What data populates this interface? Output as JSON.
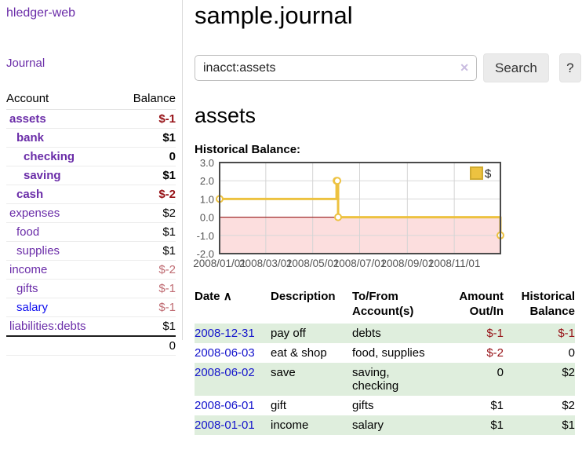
{
  "sidebar": {
    "app_title": "hledger-web",
    "journal_link": "Journal",
    "table": {
      "headers": {
        "account": "Account",
        "balance": "Balance"
      },
      "accounts": [
        {
          "name": "assets",
          "balance": "$-1",
          "depth": 1,
          "bold": true
        },
        {
          "name": "bank",
          "balance": "$1",
          "depth": 2,
          "bold": true
        },
        {
          "name": "checking",
          "balance": "0",
          "depth": 3,
          "bold": true
        },
        {
          "name": "saving",
          "balance": "$1",
          "depth": 3,
          "bold": true
        },
        {
          "name": "cash",
          "balance": "$-2",
          "depth": 2,
          "bold": true
        },
        {
          "name": "expenses",
          "balance": "$2",
          "depth": 1,
          "bold": false
        },
        {
          "name": "food",
          "balance": "$1",
          "depth": 2,
          "bold": false
        },
        {
          "name": "supplies",
          "balance": "$1",
          "depth": 2,
          "bold": false
        },
        {
          "name": "income",
          "balance": "$-2",
          "depth": 1,
          "bold": false
        },
        {
          "name": "gifts",
          "balance": "$-1",
          "depth": 2,
          "bold": false
        },
        {
          "name": "salary",
          "balance": "$-1",
          "depth": 2,
          "bold": false,
          "link_color": "#0d0dee"
        },
        {
          "name": "liabilities:debts",
          "balance": "$1",
          "depth": 1,
          "bold": false
        }
      ],
      "total": "0"
    }
  },
  "main": {
    "page_title": "sample.journal",
    "search": {
      "value": "inacct:assets",
      "clear_icon": "✕",
      "button_label": "Search",
      "help_label": "?"
    },
    "account_heading": "assets",
    "chart_label": "Historical Balance:"
  },
  "chart_data": {
    "type": "line",
    "step": true,
    "title": "Historical Balance",
    "x_range": [
      "2008-01-01",
      "2008-12-31"
    ],
    "ylim": [
      -2,
      3
    ],
    "y_ticks": [
      3.0,
      2.0,
      1.0,
      0.0,
      -1.0,
      -2.0
    ],
    "x_ticks": [
      "2008/01/01",
      "2008/03/01",
      "2008/05/01",
      "2008/07/01",
      "2008/09/01",
      "2008/11/01"
    ],
    "series": [
      {
        "name": "$",
        "color": "#edc240",
        "points": [
          [
            "2008-01-01",
            1
          ],
          [
            "2008-06-01",
            2
          ],
          [
            "2008-06-02",
            2
          ],
          [
            "2008-06-03",
            0
          ],
          [
            "2008-12-31",
            -1
          ]
        ]
      }
    ],
    "legend_position": "top-right",
    "grid": true,
    "negative_region_fill": "#fcdede",
    "zero_line_color": "#8b0000"
  },
  "table": {
    "headers": {
      "date": "Date",
      "sort_icon": "∧",
      "description": "Description",
      "tofrom": "To/From Account(s)",
      "amount": "Amount Out/In",
      "balance": "Historical Balance"
    },
    "rows": [
      {
        "date": "2008-12-31",
        "description": "pay off",
        "tofrom": "debts",
        "amount": "$-1",
        "balance": "$-1"
      },
      {
        "date": "2008-06-03",
        "description": "eat & shop",
        "tofrom": "food, supplies",
        "amount": "$-2",
        "balance": "0"
      },
      {
        "date": "2008-06-02",
        "description": "save",
        "tofrom": "saving, checking",
        "amount": "0",
        "balance": "$2"
      },
      {
        "date": "2008-06-01",
        "description": "gift",
        "tofrom": "gifts",
        "amount": "$1",
        "balance": "$2"
      },
      {
        "date": "2008-01-01",
        "description": "income",
        "tofrom": "salary",
        "amount": "$1",
        "balance": "$1"
      }
    ]
  },
  "colors": {
    "link_purple": "#6a2ca8",
    "link_blue": "#1414cc",
    "negative_strong": "#961116",
    "negative_soft": "#bf6b72",
    "row_green": "#dfeedd",
    "series_gold": "#edc240",
    "zero_line": "#8b0000",
    "negative_region": "#fcdede"
  }
}
